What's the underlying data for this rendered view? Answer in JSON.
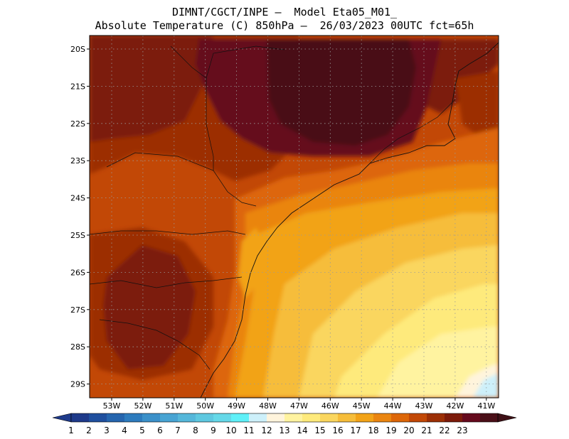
{
  "header": {
    "line1": "DIMNT/CGCT/INPE –  Model Eta05_M01_",
    "line2": "Absolute Temperature (C) 850hPa –  26/03/2023 00UTC fct=65h"
  },
  "map": {
    "lat_labels": [
      "20S",
      "21S",
      "22S",
      "23S",
      "24S",
      "25S",
      "26S",
      "27S",
      "28S",
      "29S"
    ],
    "lon_labels": [
      "53W",
      "52W",
      "51W",
      "50W",
      "49W",
      "48W",
      "47W",
      "46W",
      "45W",
      "44W",
      "43W",
      "42W",
      "41W"
    ]
  },
  "colorbar": {
    "labels": [
      "1",
      "2",
      "3",
      "4",
      "5",
      "6",
      "7",
      "8",
      "9",
      "10",
      "11",
      "12",
      "13",
      "14",
      "15",
      "16",
      "17",
      "18",
      "19",
      "20",
      "21",
      "22",
      "23"
    ],
    "colors": [
      "#1e3a8a",
      "#1f4f9e",
      "#2565ae",
      "#2d7bbd",
      "#3b90c9",
      "#48a4d3",
      "#55b7da",
      "#5ec8e0",
      "#65d8e8",
      "#5ff0f8",
      "#cdf0fa",
      "#fff4dc",
      "#fff3a0",
      "#feea7c",
      "#fad65e",
      "#f6bd3a",
      "#f2a318",
      "#ea8510",
      "#dd6608",
      "#c24806",
      "#9c2f05",
      "#7c1a0a",
      "#650a1d",
      "#4a0f18"
    ],
    "left_arrow_color": "#1e3a8a",
    "right_arrow_color": "#3e1016"
  }
}
